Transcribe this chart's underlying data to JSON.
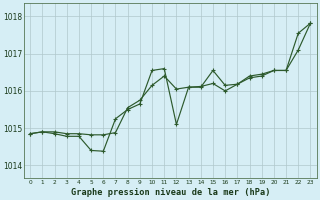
{
  "title": "Graphe pression niveau de la mer (hPa)",
  "background_color": "#d6eef5",
  "grid_color": "#b0c8cc",
  "line_color": "#2d5a2d",
  "xlim": [
    -0.5,
    23.5
  ],
  "ylim": [
    1013.65,
    1018.35
  ],
  "yticks": [
    1014,
    1015,
    1016,
    1017,
    1018
  ],
  "xticks": [
    0,
    1,
    2,
    3,
    4,
    5,
    6,
    7,
    8,
    9,
    10,
    11,
    12,
    13,
    14,
    15,
    16,
    17,
    18,
    19,
    20,
    21,
    22,
    23
  ],
  "series1_x": [
    0,
    1,
    2,
    3,
    4,
    5,
    6,
    7,
    8,
    9,
    10,
    11,
    12,
    13,
    14,
    15,
    16,
    17,
    18,
    19,
    20,
    21,
    22,
    23
  ],
  "series1_y": [
    1014.85,
    1014.9,
    1014.85,
    1014.78,
    1014.78,
    1014.4,
    1014.38,
    1015.25,
    1015.5,
    1015.65,
    1016.55,
    1016.6,
    1015.1,
    1016.1,
    1016.1,
    1016.55,
    1016.15,
    1016.18,
    1016.4,
    1016.45,
    1016.55,
    1016.55,
    1017.55,
    1017.82
  ],
  "series2_x": [
    0,
    1,
    2,
    3,
    4,
    5,
    6,
    7,
    8,
    9,
    10,
    11,
    12,
    13,
    14,
    15,
    16,
    17,
    18,
    19,
    20,
    21,
    22,
    23
  ],
  "series2_y": [
    1014.85,
    1014.9,
    1014.9,
    1014.85,
    1014.85,
    1014.82,
    1014.82,
    1014.88,
    1015.55,
    1015.75,
    1016.15,
    1016.4,
    1016.05,
    1016.1,
    1016.12,
    1016.2,
    1016.0,
    1016.18,
    1016.35,
    1016.4,
    1016.55,
    1016.55,
    1017.1,
    1017.82
  ]
}
